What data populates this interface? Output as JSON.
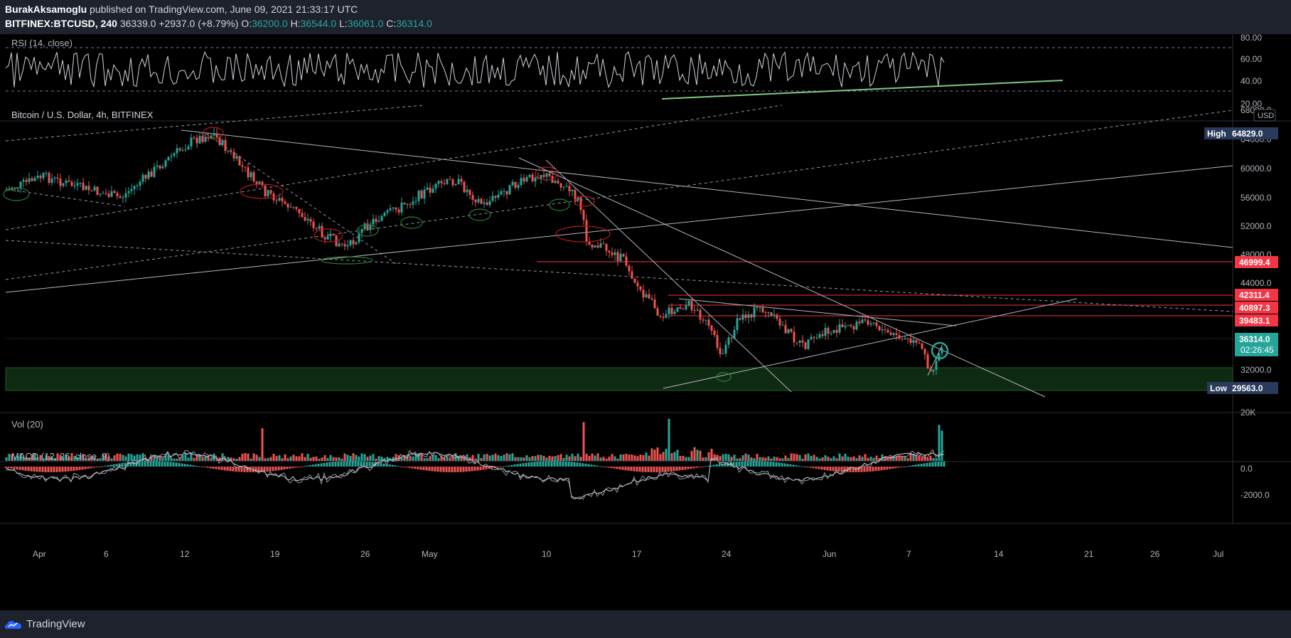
{
  "header": {
    "author": "BurakAksamoglu",
    "published_text": "published on TradingView.com, June 09, 2021 21:33:17 UTC",
    "symbol": "BITFINEX:BTCUSD, 240",
    "last": "36339.0",
    "change": "+2937.0 (+8.79%)",
    "o_label": "O:",
    "o_value": "36200.0",
    "h_label": "H:",
    "h_value": "36544.0",
    "l_label": "L:",
    "l_value": "36061.0",
    "c_label": "C:",
    "c_value": "36314.0"
  },
  "rsi": {
    "title": "RSI (14, close)",
    "ticks": [
      "80.00",
      "60.00",
      "40.00",
      "20.00"
    ]
  },
  "main": {
    "title": "Bitcoin / U.S. Dollar, 4h, BITFINEX",
    "currency": "USD",
    "price_ticks": [
      "68000.0",
      "64000.0",
      "60000.0",
      "56000.0",
      "52000.0",
      "48000.0",
      "44000.0",
      "32000.0"
    ],
    "high_label": "High",
    "high_value": "64829.0",
    "low_label": "Low",
    "low_value": "29563.0",
    "level_1": "46999.4",
    "level_2": "42311.4",
    "level_3": "40897.3",
    "level_4": "39483.1",
    "current_price": "36314.0",
    "countdown": "02:26:45"
  },
  "volume": {
    "title": "Vol (20)",
    "tick": "20K"
  },
  "macd": {
    "title": "MACD (12, 26, close, 9)",
    "ticks": [
      "0.0",
      "-2000.0"
    ]
  },
  "time_axis": [
    "Apr",
    "6",
    "12",
    "19",
    "26",
    "May",
    "10",
    "17",
    "24",
    "Jun",
    "7",
    "14",
    "21",
    "26",
    "Jul"
  ],
  "footer": {
    "brand": "TradingView"
  },
  "colors": {
    "up": "#26a69a",
    "down": "#ef5350",
    "level": "#f23645",
    "trendline_green": "#81c784",
    "high_label_bg": "#2a3a5a",
    "support_zone": "#0f2a12"
  }
}
